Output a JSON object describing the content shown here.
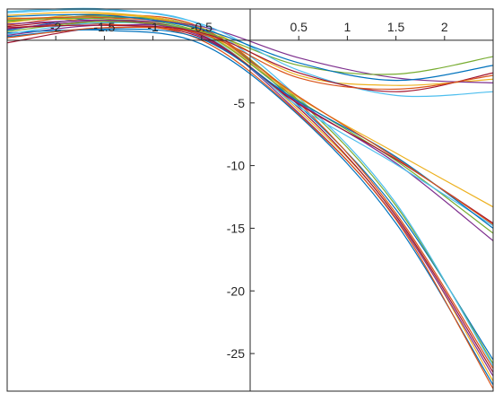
{
  "chart_data": {
    "type": "line",
    "title": "",
    "xlabel": "",
    "ylabel": "",
    "xlim": [
      -2.5,
      2.5
    ],
    "ylim": [
      -28,
      2.5
    ],
    "axis_origin": "crossing-at-zero",
    "box": true,
    "grid": false,
    "x_ticks": [
      {
        "value": -2,
        "label": "-2"
      },
      {
        "value": -1.5,
        "label": "-1.5"
      },
      {
        "value": -1,
        "label": "-1"
      },
      {
        "value": -0.5,
        "label": "-0.5"
      },
      {
        "value": 0.5,
        "label": "0.5"
      },
      {
        "value": 1,
        "label": "1"
      },
      {
        "value": 1.5,
        "label": "1.5"
      },
      {
        "value": 2,
        "label": "2"
      }
    ],
    "y_ticks": [
      {
        "value": -5,
        "label": "-5"
      },
      {
        "value": -10,
        "label": "-10"
      },
      {
        "value": -15,
        "label": "-15"
      },
      {
        "value": -20,
        "label": "-20"
      },
      {
        "value": -25,
        "label": "-25"
      }
    ],
    "series": [
      {
        "color": "#0072BD",
        "points": [
          [
            -2.5,
            0.8
          ],
          [
            -1.5,
            1.8
          ],
          [
            -0.5,
            0.9
          ],
          [
            0.5,
            -5.2
          ],
          [
            1.5,
            -13.5
          ],
          [
            2.5,
            -25.5
          ]
        ]
      },
      {
        "color": "#D95319",
        "points": [
          [
            -2.5,
            1.2
          ],
          [
            -1.5,
            2.0
          ],
          [
            -0.5,
            1.0
          ],
          [
            0.5,
            -5.0
          ],
          [
            1.5,
            -13.8
          ],
          [
            2.5,
            -26.2
          ]
        ]
      },
      {
        "color": "#EDB120",
        "points": [
          [
            -2.5,
            1.8
          ],
          [
            -1.5,
            1.5
          ],
          [
            -0.5,
            0.5
          ],
          [
            0.5,
            -5.6
          ],
          [
            1.5,
            -14.0
          ],
          [
            2.5,
            -27.2
          ]
        ]
      },
      {
        "color": "#7E2F8E",
        "points": [
          [
            -2.5,
            0.4
          ],
          [
            -1.5,
            1.2
          ],
          [
            -0.5,
            0.4
          ],
          [
            0.5,
            -5.8
          ],
          [
            1.5,
            -14.2
          ],
          [
            2.5,
            -26.8
          ]
        ]
      },
      {
        "color": "#77AC30",
        "points": [
          [
            -2.5,
            1.5
          ],
          [
            -1.5,
            1.9
          ],
          [
            -0.5,
            0.8
          ],
          [
            0.5,
            -4.8
          ],
          [
            1.5,
            -13.2
          ],
          [
            2.5,
            -25.8
          ]
        ]
      },
      {
        "color": "#4DBEEE",
        "points": [
          [
            -2.5,
            2.2
          ],
          [
            -1.5,
            2.4
          ],
          [
            -0.5,
            1.2
          ],
          [
            0.5,
            -4.6
          ],
          [
            1.5,
            -13.0
          ],
          [
            2.5,
            -26.0
          ]
        ]
      },
      {
        "color": "#A2142F",
        "points": [
          [
            -2.5,
            -0.2
          ],
          [
            -1.5,
            1.0
          ],
          [
            -0.5,
            0.2
          ],
          [
            0.5,
            -5.4
          ],
          [
            1.5,
            -14.0
          ],
          [
            2.5,
            -26.5
          ]
        ]
      },
      {
        "color": "#0072BD",
        "points": [
          [
            -2.5,
            0.6
          ],
          [
            -1.5,
            0.8
          ],
          [
            -0.5,
            -0.3
          ],
          [
            0.5,
            -6.0
          ],
          [
            1.5,
            -14.6
          ],
          [
            2.5,
            -27.5
          ]
        ]
      },
      {
        "color": "#D95319",
        "points": [
          [
            -2.5,
            1.0
          ],
          [
            -1.5,
            1.3
          ],
          [
            -0.5,
            0.0
          ],
          [
            0.5,
            -5.9
          ],
          [
            1.5,
            -14.3
          ],
          [
            2.5,
            -27.8
          ]
        ]
      },
      {
        "color": "#EDB120",
        "points": [
          [
            -2.5,
            1.4
          ],
          [
            -1.5,
            2.1
          ],
          [
            -0.5,
            0.7
          ],
          [
            0.5,
            -4.6
          ],
          [
            1.5,
            -9.0
          ],
          [
            2.5,
            -13.3
          ]
        ]
      },
      {
        "color": "#7E2F8E",
        "points": [
          [
            -2.5,
            0.9
          ],
          [
            -1.5,
            1.5
          ],
          [
            -0.5,
            0.3
          ],
          [
            0.5,
            -5.0
          ],
          [
            1.5,
            -9.8
          ],
          [
            2.5,
            -16.0
          ]
        ]
      },
      {
        "color": "#77AC30",
        "points": [
          [
            -2.5,
            1.6
          ],
          [
            -1.5,
            1.7
          ],
          [
            -0.5,
            0.6
          ],
          [
            0.5,
            -4.8
          ],
          [
            1.5,
            -9.6
          ],
          [
            2.5,
            -15.4
          ]
        ]
      },
      {
        "color": "#4DBEEE",
        "points": [
          [
            -2.5,
            0.5
          ],
          [
            -1.5,
            1.4
          ],
          [
            -0.5,
            0.5
          ],
          [
            0.5,
            -5.3
          ],
          [
            1.5,
            -9.9
          ],
          [
            2.5,
            -14.8
          ]
        ]
      },
      {
        "color": "#A2142F",
        "points": [
          [
            -2.5,
            1.1
          ],
          [
            -1.5,
            1.6
          ],
          [
            -0.5,
            0.4
          ],
          [
            0.5,
            -5.1
          ],
          [
            1.5,
            -9.5
          ],
          [
            2.5,
            -14.6
          ]
        ]
      },
      {
        "color": "#0072BD",
        "points": [
          [
            -2.5,
            0.3
          ],
          [
            -1.5,
            0.9
          ],
          [
            -0.5,
            0.1
          ],
          [
            0.5,
            -4.9
          ],
          [
            1.5,
            -9.3
          ],
          [
            2.5,
            -15.0
          ]
        ]
      },
      {
        "color": "#D95319",
        "points": [
          [
            -2.5,
            1.7
          ],
          [
            -1.5,
            1.8
          ],
          [
            -0.5,
            0.8
          ],
          [
            0.5,
            -4.5
          ],
          [
            1.5,
            -9.4
          ],
          [
            2.5,
            -14.7
          ]
        ]
      },
      {
        "color": "#EDB120",
        "points": [
          [
            -2.5,
            2.0
          ],
          [
            -1.5,
            2.2
          ],
          [
            -0.5,
            1.0
          ],
          [
            0.5,
            -2.8
          ],
          [
            1.5,
            -3.6
          ],
          [
            2.5,
            -3.1
          ]
        ]
      },
      {
        "color": "#7E2F8E",
        "points": [
          [
            -2.5,
            1.3
          ],
          [
            -1.5,
            1.6
          ],
          [
            -0.5,
            1.1
          ],
          [
            0.5,
            -1.4
          ],
          [
            1.5,
            -3.0
          ],
          [
            2.5,
            -3.4
          ]
        ]
      },
      {
        "color": "#77AC30",
        "points": [
          [
            -2.5,
            0.7
          ],
          [
            -1.5,
            1.5
          ],
          [
            -0.5,
            0.7
          ],
          [
            0.5,
            -2.0
          ],
          [
            1.5,
            -2.7
          ],
          [
            2.5,
            -1.3
          ]
        ]
      },
      {
        "color": "#4DBEEE",
        "points": [
          [
            -2.5,
            2.3
          ],
          [
            -1.5,
            2.5
          ],
          [
            -0.5,
            1.3
          ],
          [
            0.5,
            -2.4
          ],
          [
            1.5,
            -4.4
          ],
          [
            2.5,
            -4.1
          ]
        ]
      },
      {
        "color": "#A2142F",
        "points": [
          [
            -2.5,
            1.0
          ],
          [
            -1.5,
            1.2
          ],
          [
            -0.5,
            0.6
          ],
          [
            0.5,
            -2.6
          ],
          [
            1.5,
            -4.1
          ],
          [
            2.5,
            -2.6
          ]
        ]
      },
      {
        "color": "#0072BD",
        "points": [
          [
            -2.5,
            1.9
          ],
          [
            -1.5,
            2.0
          ],
          [
            -0.5,
            0.9
          ],
          [
            0.5,
            -1.8
          ],
          [
            1.5,
            -3.2
          ],
          [
            2.5,
            -2.0
          ]
        ]
      },
      {
        "color": "#D95319",
        "points": [
          [
            -2.5,
            0.2
          ],
          [
            -1.5,
            1.0
          ],
          [
            -0.5,
            0.5
          ],
          [
            0.5,
            -3.0
          ],
          [
            1.5,
            -3.9
          ],
          [
            2.5,
            -2.8
          ]
        ]
      }
    ]
  }
}
